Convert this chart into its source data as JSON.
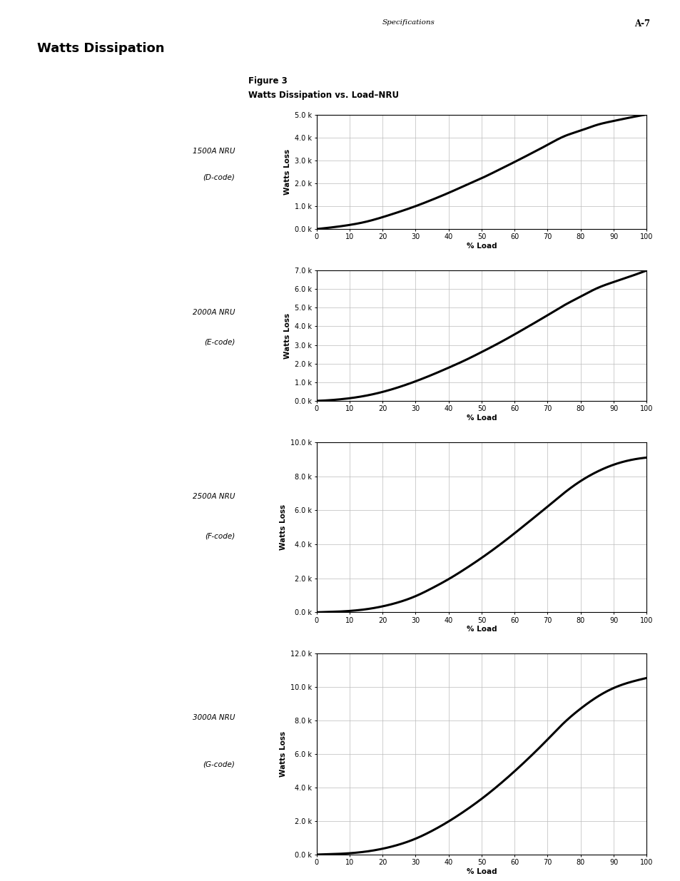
{
  "page_header_left": "Specifications",
  "page_header_right": "A-7",
  "section_title": "Watts Dissipation",
  "figure_title_line1": "Figure 3",
  "figure_title_line2": "Watts Dissipation vs. Load–NRU",
  "charts": [
    {
      "label_line1": "1500A NRU",
      "label_line2": "(D-code)",
      "ylabel": "Watts Loss",
      "xlabel": "% Load",
      "ymax": 5.0,
      "yticks": [
        0.0,
        1.0,
        2.0,
        3.0,
        4.0,
        5.0
      ],
      "ytick_labels": [
        "0.0 k",
        "1.0 k",
        "2.0 k",
        "3.0 k",
        "4.0 k",
        "5.0 k"
      ],
      "xticks": [
        0,
        10,
        20,
        30,
        40,
        50,
        60,
        70,
        80,
        90,
        100
      ],
      "curve_x": [
        0,
        5,
        10,
        15,
        20,
        25,
        30,
        35,
        40,
        45,
        50,
        55,
        60,
        65,
        70,
        75,
        80,
        85,
        90,
        95,
        100
      ],
      "curve_y": [
        0,
        0.08,
        0.18,
        0.32,
        0.52,
        0.75,
        1.0,
        1.28,
        1.58,
        1.9,
        2.22,
        2.57,
        2.93,
        3.3,
        3.68,
        4.05,
        4.3,
        4.55,
        4.72,
        4.87,
        5.0
      ]
    },
    {
      "label_line1": "2000A NRU",
      "label_line2": "(E-code)",
      "ylabel": "Watts Loss",
      "xlabel": "% Load",
      "ymax": 7.0,
      "yticks": [
        0.0,
        1.0,
        2.0,
        3.0,
        4.0,
        5.0,
        6.0,
        7.0
      ],
      "ytick_labels": [
        "0.0 k",
        "1.0 k",
        "2.0 k",
        "3.0 k",
        "4.0 k",
        "5.0 k",
        "6.0 k",
        "7.0 k"
      ],
      "xticks": [
        0,
        10,
        20,
        30,
        40,
        50,
        60,
        70,
        80,
        90,
        100
      ],
      "curve_x": [
        0,
        5,
        10,
        15,
        20,
        25,
        30,
        35,
        40,
        45,
        50,
        55,
        60,
        65,
        70,
        75,
        80,
        85,
        90,
        95,
        100
      ],
      "curve_y": [
        0,
        0.05,
        0.14,
        0.28,
        0.48,
        0.74,
        1.05,
        1.4,
        1.78,
        2.18,
        2.62,
        3.08,
        3.57,
        4.08,
        4.6,
        5.13,
        5.6,
        6.05,
        6.38,
        6.68,
        7.0
      ]
    },
    {
      "label_line1": "2500A NRU",
      "label_line2": "(F-code)",
      "ylabel": "Watts Loss",
      "xlabel": "% Load",
      "ymax": 10.0,
      "yticks": [
        0.0,
        2.0,
        4.0,
        6.0,
        8.0,
        10.0
      ],
      "ytick_labels": [
        "0.0 k",
        "2.0 k",
        "4.0 k",
        "6.0 k",
        "8.0 k",
        "10.0 k"
      ],
      "xticks": [
        0,
        10,
        20,
        30,
        40,
        50,
        60,
        70,
        80,
        90,
        100
      ],
      "curve_x": [
        0,
        5,
        10,
        15,
        20,
        25,
        30,
        35,
        40,
        45,
        50,
        55,
        60,
        65,
        70,
        75,
        80,
        85,
        90,
        95,
        100
      ],
      "curve_y": [
        0,
        0.03,
        0.08,
        0.18,
        0.35,
        0.6,
        0.95,
        1.42,
        1.95,
        2.55,
        3.2,
        3.9,
        4.65,
        5.43,
        6.22,
        7.02,
        7.72,
        8.27,
        8.68,
        8.95,
        9.1
      ]
    },
    {
      "label_line1": "3000A NRU",
      "label_line2": "(G-code)",
      "ylabel": "Watts Loss",
      "xlabel": "% Load",
      "ymax": 12.0,
      "yticks": [
        0.0,
        2.0,
        4.0,
        6.0,
        8.0,
        10.0,
        12.0
      ],
      "ytick_labels": [
        "0.0 k",
        "2.0 k",
        "4.0 k",
        "6.0 k",
        "8.0 k",
        "10.0 k",
        "12.0 k"
      ],
      "xticks": [
        0,
        10,
        20,
        30,
        40,
        50,
        60,
        70,
        80,
        90,
        100
      ],
      "curve_x": [
        0,
        5,
        10,
        15,
        20,
        25,
        30,
        35,
        40,
        45,
        50,
        55,
        60,
        65,
        70,
        75,
        80,
        85,
        90,
        95,
        100
      ],
      "curve_y": [
        0,
        0.03,
        0.08,
        0.18,
        0.35,
        0.6,
        0.95,
        1.42,
        1.98,
        2.62,
        3.33,
        4.12,
        4.98,
        5.9,
        6.88,
        7.88,
        8.72,
        9.42,
        9.95,
        10.3,
        10.55
      ]
    }
  ],
  "background_color": "#ffffff",
  "grid_color": "#bbbbbb",
  "curve_color": "#000000",
  "curve_linewidth": 2.2,
  "axis_label_fontsize": 7.5,
  "tick_fontsize": 7,
  "chart_label_fontsize": 7.5,
  "figure_title_fontsize1": 8.5,
  "figure_title_fontsize2": 8.5,
  "section_title_fontsize": 13,
  "header_fontsize": 7.5
}
